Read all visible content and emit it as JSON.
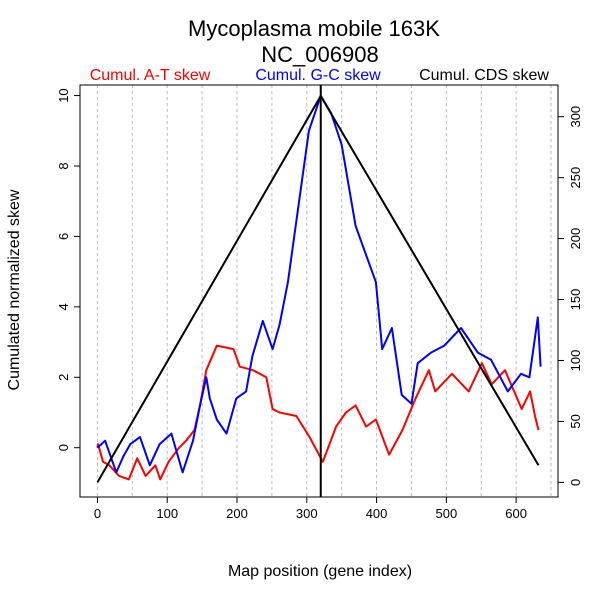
{
  "chart_data": {
    "type": "line",
    "title": "Mycoplasma mobile 163K",
    "subtitle": "NC_006908",
    "xlabel": "Map position (gene index)",
    "ylabel": "Cumulated normalized skew",
    "xlim": [
      -25,
      660
    ],
    "ylim": [
      -1.4,
      10.3
    ],
    "y2lim": [
      -12,
      326
    ],
    "xticks": [
      0,
      100,
      200,
      300,
      400,
      500,
      600
    ],
    "yticks": [
      0,
      2,
      4,
      6,
      8,
      10
    ],
    "y2ticks": [
      0,
      50,
      100,
      150,
      200,
      250,
      300
    ],
    "grid_x_every": 50,
    "origin_marker_x": 320,
    "legend": [
      {
        "label": "Cumul. A-T skew",
        "color": "#ff0000"
      },
      {
        "label": "Cumul. G-C skew",
        "color": "#0000ff"
      },
      {
        "label": "Cumul. CDS skew",
        "color": "#000000"
      }
    ],
    "series": [
      {
        "name": "Cumul. A-T skew",
        "color": "#ff0000",
        "axis": "left",
        "x": [
          0,
          1,
          8,
          17,
          31,
          45,
          57,
          69,
          83,
          90,
          102,
          117,
          127,
          139,
          147,
          156,
          171,
          195,
          204,
          223,
          242,
          251,
          261,
          285,
          304,
          323,
          342,
          356,
          370,
          385,
          399,
          418,
          437,
          456,
          475,
          484,
          508,
          532,
          551,
          565,
          584,
          608,
          620,
          627,
          632
        ],
        "y": [
          0,
          0.1,
          -0.4,
          -0.5,
          -0.8,
          -0.9,
          -0.3,
          -0.8,
          -0.5,
          -0.9,
          -0.4,
          0.0,
          0.2,
          0.5,
          1.2,
          2.2,
          2.9,
          2.8,
          2.3,
          2.2,
          2.0,
          1.1,
          1.0,
          0.9,
          0.3,
          -0.4,
          0.6,
          1.0,
          1.2,
          0.6,
          0.8,
          -0.2,
          0.5,
          1.4,
          2.2,
          1.6,
          2.1,
          1.6,
          2.4,
          1.8,
          2.2,
          1.1,
          1.6,
          0.9,
          0.5
        ]
      },
      {
        "name": "Cumul. G-C skew",
        "color": "#0000ff",
        "axis": "left",
        "x": [
          0,
          11,
          27,
          37,
          47,
          61,
          75,
          89,
          106,
          122,
          137,
          147,
          156,
          161,
          171,
          185,
          199,
          213,
          222,
          237,
          251,
          261,
          273,
          289,
          303,
          315,
          320,
          335,
          350,
          370,
          399,
          408,
          422,
          436,
          450,
          459,
          478,
          497,
          521,
          545,
          564,
          588,
          607,
          619,
          631,
          635
        ],
        "y": [
          0,
          0.2,
          -0.7,
          -0.25,
          0.1,
          0.3,
          -0.5,
          0.1,
          0.4,
          -0.7,
          0.2,
          1.2,
          2.0,
          1.4,
          0.8,
          0.4,
          1.4,
          1.6,
          2.6,
          3.6,
          2.8,
          3.5,
          4.7,
          7.0,
          9.0,
          9.7,
          10.0,
          9.5,
          8.6,
          6.3,
          4.7,
          2.8,
          3.4,
          1.5,
          1.25,
          2.4,
          2.7,
          2.9,
          3.4,
          2.7,
          2.5,
          1.6,
          2.1,
          2.0,
          3.7,
          2.3
        ]
      },
      {
        "name": "Cumul. CDS skew",
        "color": "#000000",
        "axis": "right",
        "x": [
          0,
          320,
          632
        ],
        "y": [
          0,
          317,
          14
        ]
      }
    ]
  }
}
